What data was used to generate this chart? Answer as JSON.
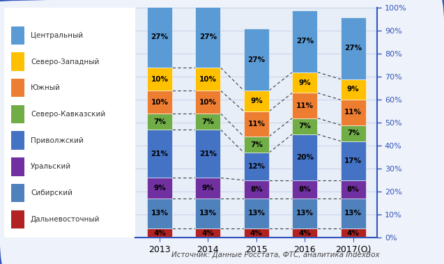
{
  "years": [
    "2013",
    "2014",
    "2015",
    "2016",
    "2017(О)"
  ],
  "categories": [
    "Дальневосточный",
    "Сибирский",
    "Уральский",
    "Приволжский",
    "Северо-Кавказский",
    "Южный",
    "Северо-Западный",
    "Центральный"
  ],
  "data": {
    "Дальневосточный": [
      4,
      4,
      4,
      4,
      4
    ],
    "Сибирский": [
      13,
      13,
      13,
      13,
      13
    ],
    "Уральский": [
      9,
      9,
      8,
      8,
      8
    ],
    "Приволжский": [
      21,
      21,
      12,
      20,
      17
    ],
    "Северо-Кавказский": [
      7,
      7,
      7,
      7,
      7
    ],
    "Южный": [
      10,
      10,
      11,
      11,
      11
    ],
    "Северо-Западный": [
      10,
      10,
      9,
      9,
      9
    ],
    "Центральный": [
      27,
      27,
      27,
      27,
      27
    ]
  },
  "colors_map": {
    "Дальневосточный": "#b22222",
    "Сибирский": "#4f81bd",
    "Уральский": "#7030a0",
    "Приволжский": "#4472c4",
    "Северо-Кавказский": "#70ad47",
    "Южный": "#ed7d31",
    "Северо-Западный": "#ffc000",
    "Центральный": "#5b9bd5"
  },
  "source_text": "Источник: Данные Росстата, ФТС, аналитика IndexBox",
  "bg_color": "#eef2fa",
  "plot_bg_color": "#e8eef8",
  "border_color": "#3355bb",
  "yticks": [
    0,
    10,
    20,
    30,
    40,
    50,
    60,
    70,
    80,
    90,
    100
  ]
}
